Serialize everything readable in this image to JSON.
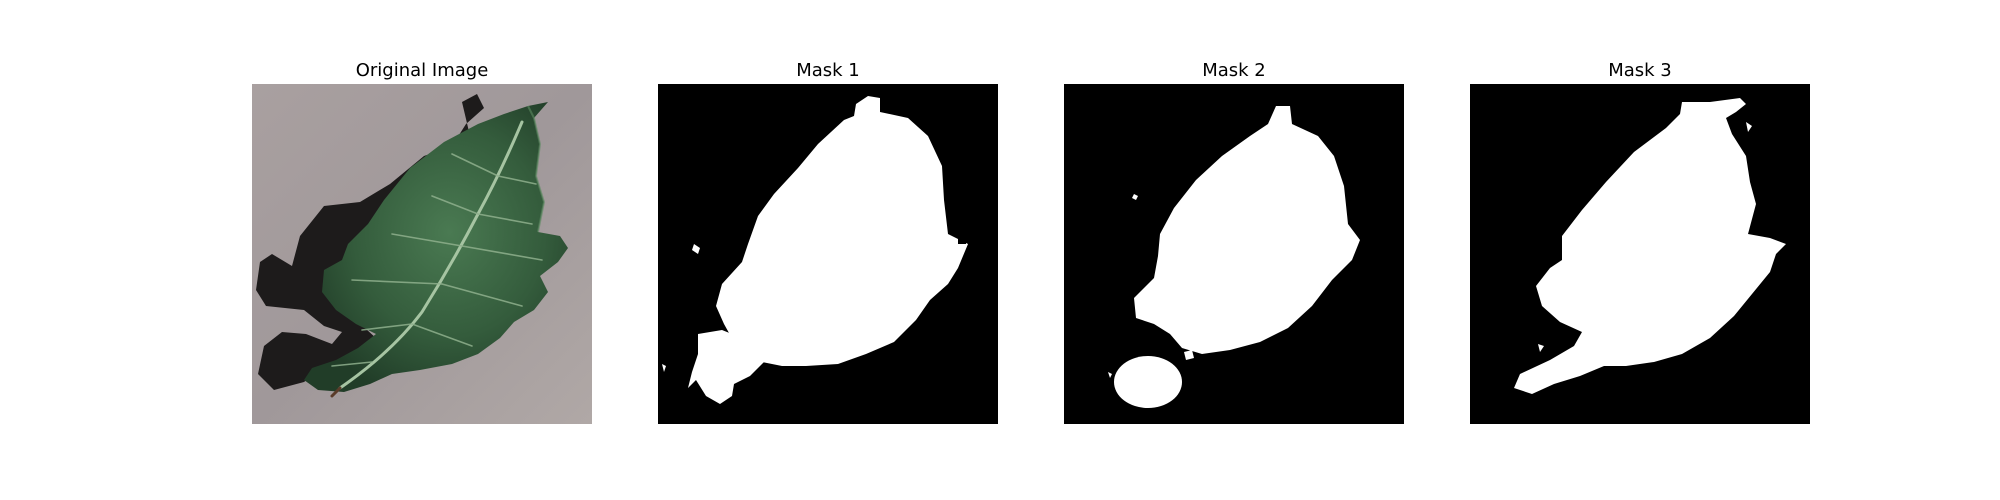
{
  "figure": {
    "background_color": "#ffffff",
    "panels": [
      {
        "title": "Original Image",
        "kind": "photo",
        "subject": "leaf-on-concrete"
      },
      {
        "title": "Mask 1",
        "kind": "mask"
      },
      {
        "title": "Mask 2",
        "kind": "mask"
      },
      {
        "title": "Mask 3",
        "kind": "mask"
      }
    ],
    "colors": {
      "mask_background": "#000000",
      "mask_foreground": "#ffffff",
      "ground": "#a59c9b",
      "shadow": "#1c1a1a",
      "leaf_dark": "#25452e",
      "leaf_mid": "#3f6a47",
      "vein": "#9bb89a"
    }
  }
}
